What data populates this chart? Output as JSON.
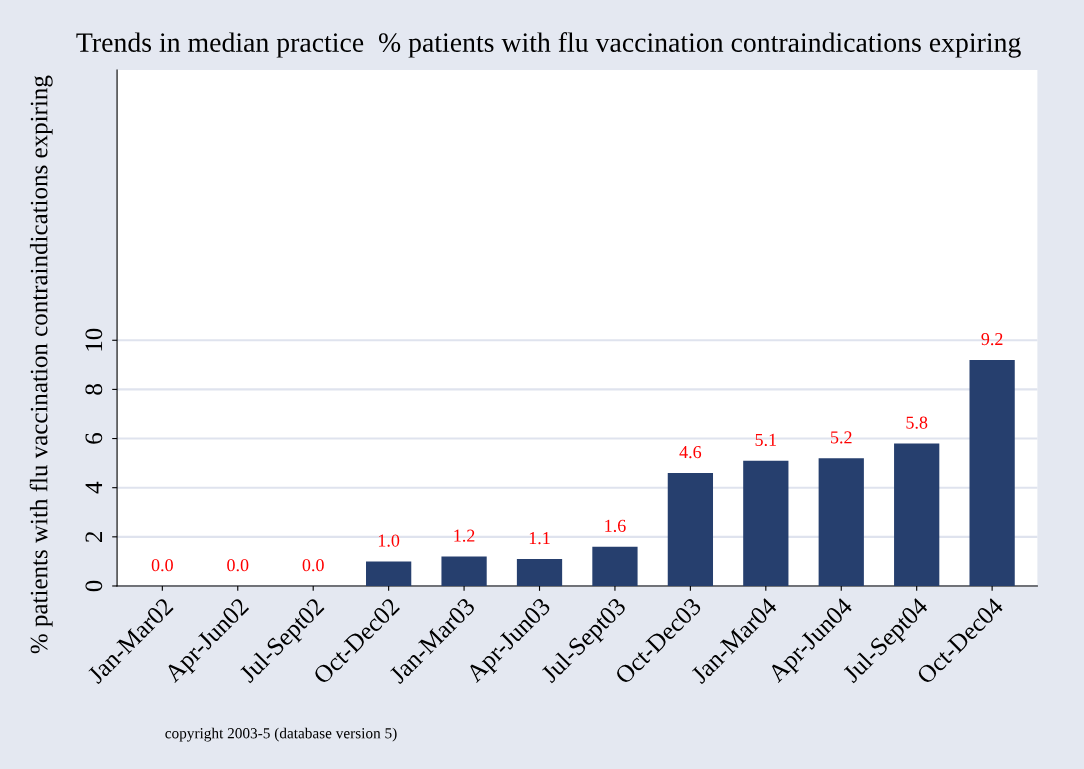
{
  "chart_data": {
    "type": "bar",
    "title": "Trends in median practice  % patients with flu vaccination contraindications expiring",
    "ylabel": "% patients with flu vaccination contraindications expiring",
    "categories": [
      "Jan-Mar02",
      "Apr-Jun02",
      "Jul-Sept02",
      "Oct-Dec02",
      "Jan-Mar03",
      "Apr-Jun03",
      "Jul-Sept03",
      "Oct-Dec03",
      "Jan-Mar04",
      "Apr-Jun04",
      "Jul-Sept04",
      "Oct-Dec04"
    ],
    "values": [
      0,
      0,
      0,
      1.0,
      1.2,
      1.1,
      1.6,
      4.6,
      5.1,
      5.2,
      5.8,
      9.2
    ],
    "value_labels": [
      "0.0",
      "0.0",
      "0.0",
      "1.0",
      "1.2",
      "1.1",
      "1.6",
      "4.6",
      "5.1",
      "5.2",
      "5.8",
      "9.2"
    ],
    "color": "#263f6e",
    "ylim": [
      0,
      21
    ],
    "yticks": [
      0,
      2,
      4,
      6,
      8,
      10
    ],
    "grid": "y",
    "legend": false,
    "annotations": [
      "copyright 2003-5 (database version 5)"
    ]
  }
}
